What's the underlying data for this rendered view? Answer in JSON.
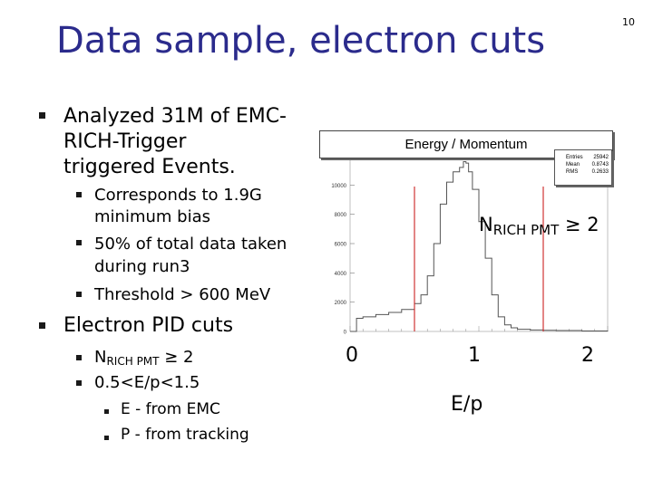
{
  "slide": {
    "title": "Data sample, electron cuts",
    "page_number": "10"
  },
  "bullets": {
    "b1_line1": "Analyzed 31M of EMC-",
    "b1_line2": "RICH-Trigger",
    "b1_line3": "triggered Events.",
    "b1_sub1_line1": "Corresponds to 1.9G",
    "b1_sub1_line2": "minimum bias",
    "b1_sub2_line1": "50% of total data taken",
    "b1_sub2_line2": "during run3",
    "b1_sub3": "Threshold > 600 MeV",
    "b2": "Electron PID cuts",
    "b2_sub1_main": "N",
    "b2_sub1_sub": "RICH PMT",
    "b2_sub1_rest": " ≥ 2",
    "b2_sub2": "0.5<E/p<1.5",
    "b2_sub2_sub1": "E - from EMC",
    "b2_sub2_sub2": "P - from tracking"
  },
  "plot": {
    "title": "Energy / Momentum",
    "stats": [
      {
        "label": "Entries",
        "value": "25942"
      },
      {
        "label": "Mean",
        "value": "0.8743"
      },
      {
        "label": "RMS",
        "value": "0.2633"
      }
    ],
    "annotation_main": "N",
    "annotation_sub": "RICH PMT",
    "annotation_rest": " ≥ 2",
    "x_labels": [
      "0",
      "1",
      "2"
    ],
    "x_axis_title": "E/p",
    "colors": {
      "histogram": "#555555",
      "cut_lines": "#cc2222"
    }
  },
  "chart_data": {
    "type": "line",
    "title": "Energy / Momentum",
    "xlabel": "E/p",
    "ylabel": "",
    "xlim": [
      0,
      2
    ],
    "ylim": [
      0,
      12000
    ],
    "y_ticks": [
      0,
      2000,
      4000,
      6000,
      8000,
      10000
    ],
    "x_ticks": [
      0,
      1,
      2
    ],
    "cut_lines": [
      0.5,
      1.5
    ],
    "x": [
      0.0,
      0.05,
      0.1,
      0.2,
      0.3,
      0.4,
      0.5,
      0.55,
      0.6,
      0.65,
      0.7,
      0.75,
      0.8,
      0.85,
      0.88,
      0.9,
      0.92,
      0.95,
      1.0,
      1.05,
      1.1,
      1.15,
      1.2,
      1.25,
      1.3,
      1.4,
      1.5,
      1.6,
      1.8,
      2.0
    ],
    "values": [
      0,
      900,
      1000,
      1150,
      1300,
      1500,
      1900,
      2500,
      3800,
      6000,
      8700,
      10200,
      10900,
      11200,
      11600,
      11500,
      10900,
      9700,
      7500,
      5000,
      2500,
      1000,
      450,
      250,
      150,
      100,
      80,
      60,
      30,
      0
    ]
  }
}
